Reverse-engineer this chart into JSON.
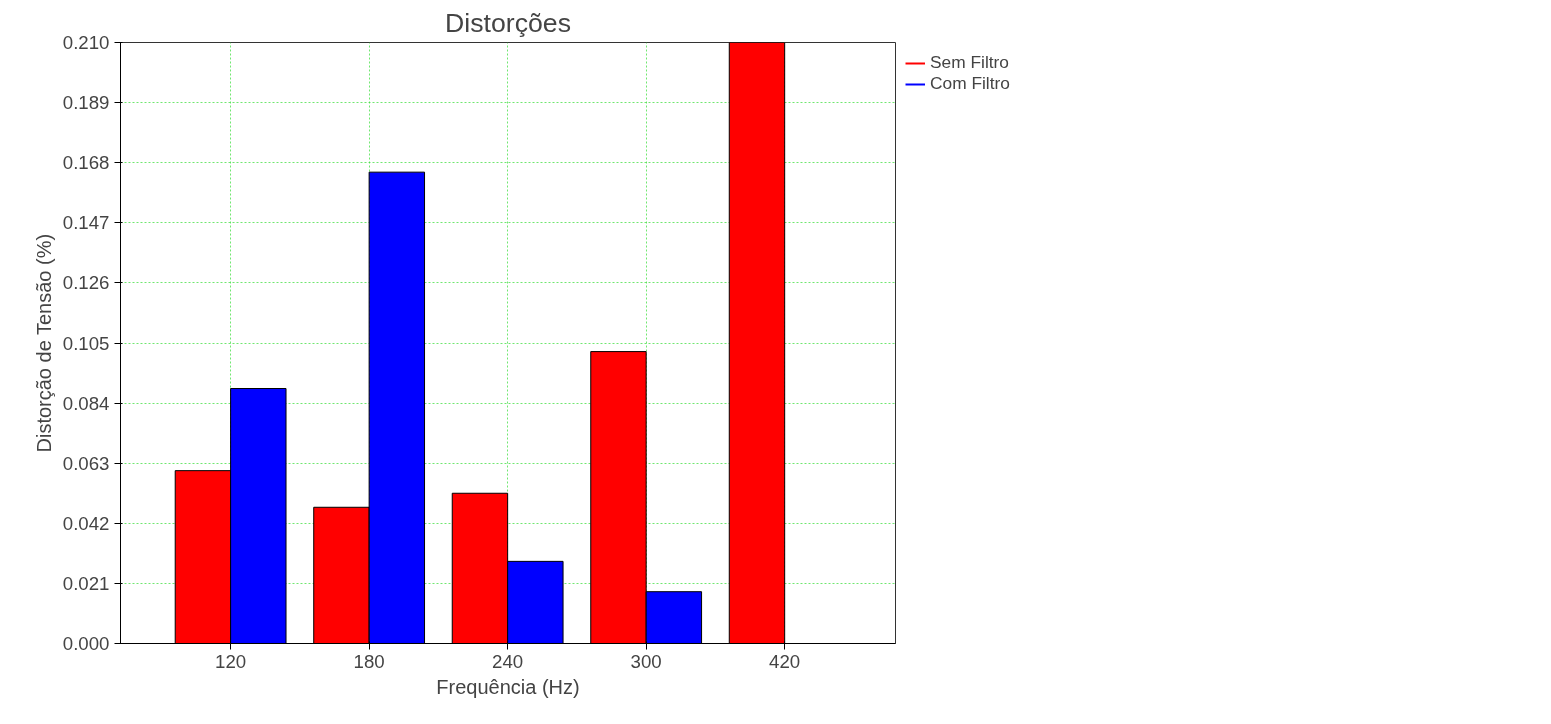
{
  "chart_data": {
    "type": "bar",
    "title": "Distorções",
    "xlabel": "Frequência (Hz)",
    "ylabel": "Distorção de Tensão (%)",
    "categories": [
      "120",
      "180",
      "240",
      "300",
      "420"
    ],
    "series": [
      {
        "name": "Sem Filtro",
        "color": "#ff0000",
        "values": [
          0.0604,
          0.0476,
          0.0525,
          0.102,
          0.21
        ]
      },
      {
        "name": "Com Filtro",
        "color": "#0000ff",
        "values": [
          0.0891,
          0.1647,
          0.0287,
          0.0181,
          null
        ]
      }
    ],
    "ylim": [
      0,
      0.21
    ],
    "yticks": [
      {
        "value": 0,
        "label": "0.000"
      },
      {
        "value": 0.021,
        "label": "0.021"
      },
      {
        "value": 0.042,
        "label": "0.042"
      },
      {
        "value": 0.063,
        "label": "0.063"
      },
      {
        "value": 0.084,
        "label": "0.084"
      },
      {
        "value": 0.105,
        "label": "0.105"
      },
      {
        "value": 0.126,
        "label": "0.126"
      },
      {
        "value": 0.147,
        "label": "0.147"
      },
      {
        "value": 0.168,
        "label": "0.168"
      },
      {
        "value": 0.189,
        "label": "0.189"
      },
      {
        "value": 0.21,
        "label": "0.210"
      }
    ],
    "grid": true,
    "legend": "right"
  }
}
